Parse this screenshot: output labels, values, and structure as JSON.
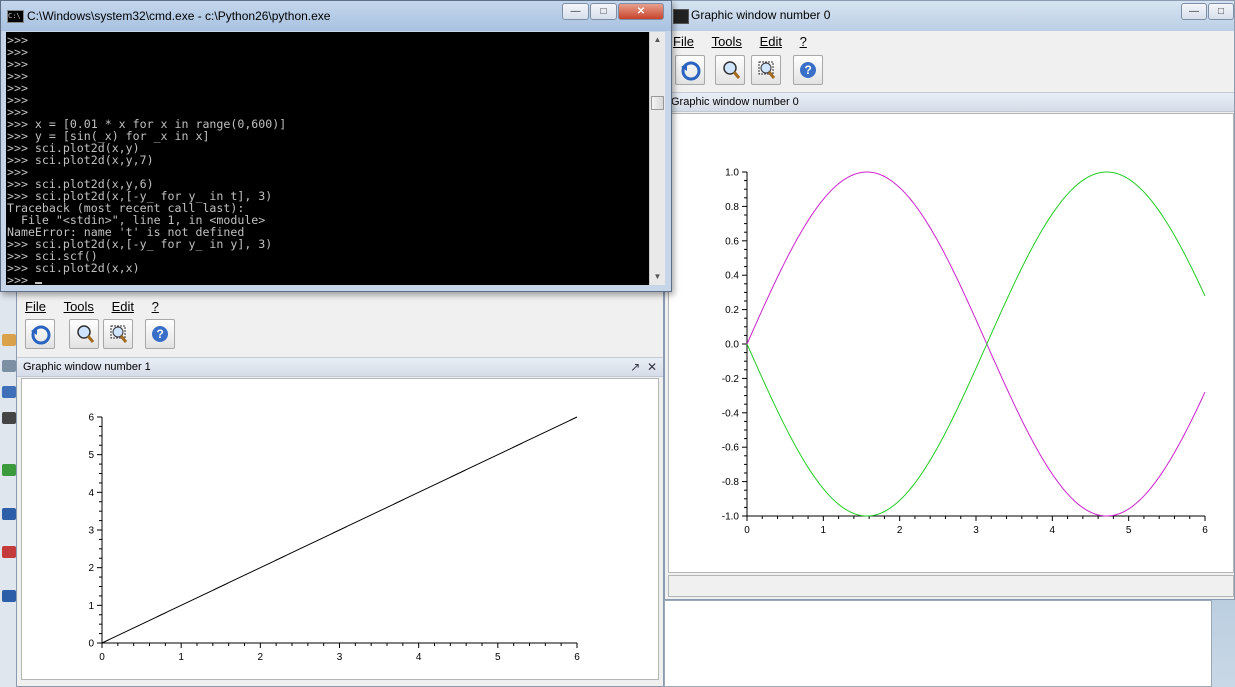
{
  "cmd_window": {
    "title": "C:\\Windows\\system32\\cmd.exe - c:\\Python26\\python.exe",
    "icon_label": "C:\\",
    "lines": [
      ">>>",
      ">>>",
      ">>>",
      ">>>",
      ">>>",
      ">>>",
      ">>>",
      ">>> x = [0.01 * x for x in range(0,600)]",
      ">>> y = [sin(_x) for _x in x]",
      ">>> sci.plot2d(x,y)",
      ">>> sci.plot2d(x,y,7)",
      ">>>",
      ">>> sci.plot2d(x,y,6)",
      ">>> sci.plot2d(x,[-y_ for y_ in t], 3)",
      "Traceback (most recent call last):",
      "  File \"<stdin>\", line 1, in <module>",
      "NameError: name 't' is not defined",
      ">>> sci.plot2d(x,[-y_ for y_ in y], 3)",
      ">>> sci.scf()",
      ">>> sci.plot2d(x,x)"
    ],
    "prompt": ">>> "
  },
  "graphic_window_0": {
    "title": "Graphic window number 0",
    "panel_title": "Graphic window number 0",
    "menu": [
      "File",
      "Tools",
      "Edit",
      "?"
    ]
  },
  "graphic_window_1": {
    "panel_title": "Graphic window number 1",
    "menu": [
      "File",
      "Tools",
      "Edit",
      "?"
    ]
  },
  "toolbar_icons": [
    "rotate-icon",
    "zoom-icon",
    "unzoom-icon",
    "help-icon"
  ],
  "chart_data": [
    {
      "type": "line",
      "x": [
        0,
        6
      ],
      "xlim": [
        0,
        6
      ],
      "ylim": [
        -1.0,
        1.0
      ],
      "xticks": [
        "0",
        "1",
        "2",
        "3",
        "4",
        "5",
        "6"
      ],
      "yticks": [
        "-1.0",
        "-0.8",
        "-0.6",
        "-0.4",
        "-0.2",
        "0.0",
        "0.2",
        "0.4",
        "0.6",
        "0.8",
        "1.0"
      ],
      "series": [
        {
          "function": "sin(x)",
          "color": "#cc22cc"
        },
        {
          "function": "-sin(x)",
          "color": "#22cc22"
        }
      ]
    },
    {
      "type": "line",
      "x": [
        0,
        6
      ],
      "y": [
        0,
        6
      ],
      "xlim": [
        0,
        6
      ],
      "ylim": [
        0,
        6
      ],
      "xticks": [
        "0",
        "1",
        "2",
        "3",
        "4",
        "5",
        "6"
      ],
      "yticks": [
        "0",
        "1",
        "2",
        "3",
        "4",
        "5",
        "6"
      ],
      "series": [
        {
          "function": "x",
          "color": "#000000"
        }
      ]
    }
  ],
  "colors": {
    "desktop": "#5a7fa8",
    "console_bg": "#000000",
    "console_fg": "#c0c0c0"
  }
}
